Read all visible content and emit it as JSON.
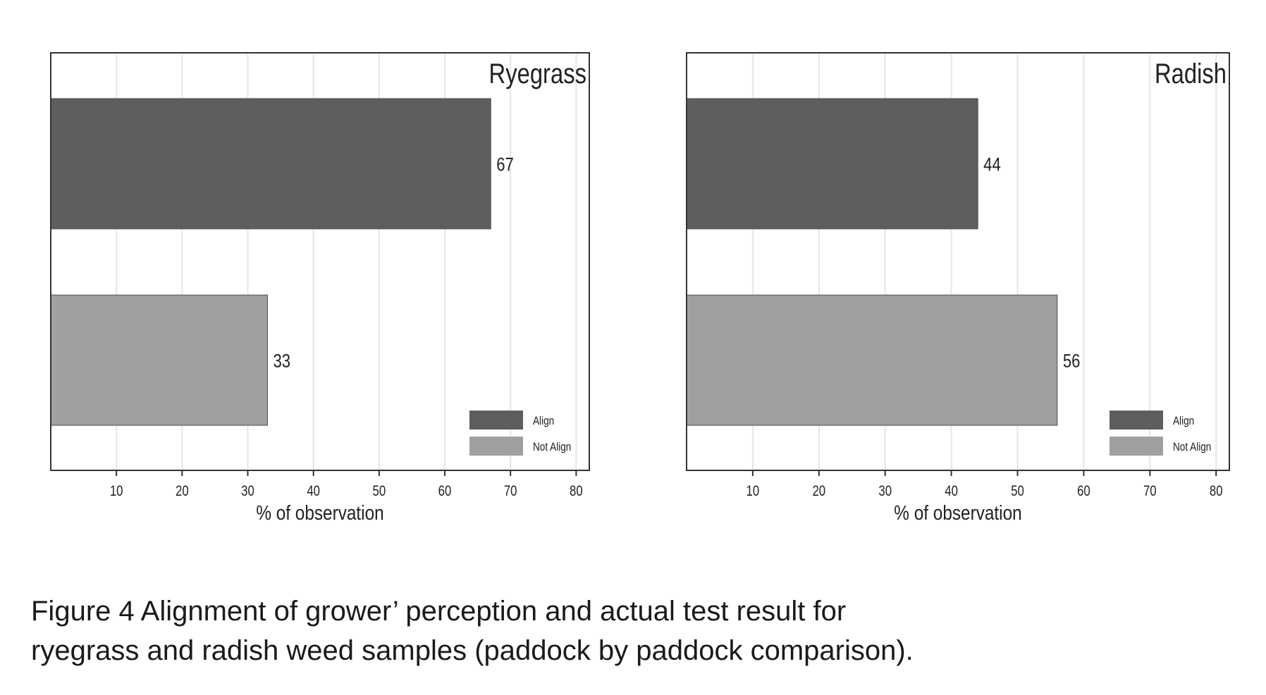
{
  "caption": {
    "line1": "Figure 4 Alignment of grower’ perception and actual test result for",
    "line2": "ryegrass and radish weed samples (paddock by paddock comparison)."
  },
  "colors": {
    "align": "#5e5e5e",
    "not_align": "#a0a0a0",
    "frame": "#333333",
    "grid": "#e6e6e6",
    "text": "#222222"
  },
  "chart_data": [
    {
      "type": "bar",
      "orientation": "horizontal",
      "title": "Ryegrass",
      "categories": [
        "Align",
        "Not Align"
      ],
      "values": [
        67,
        33
      ],
      "data_labels": [
        "67",
        "33"
      ],
      "xlabel": "% of observation",
      "ylabel": "",
      "xlim": [
        0,
        82
      ],
      "xticks": [
        10,
        20,
        30,
        40,
        50,
        60,
        70,
        80
      ],
      "grid": "vertical",
      "legend": {
        "position": "bottom-right",
        "entries": [
          "Align",
          "Not Align"
        ]
      }
    },
    {
      "type": "bar",
      "orientation": "horizontal",
      "title": "Radish",
      "categories": [
        "Align",
        "Not Align"
      ],
      "values": [
        44,
        56
      ],
      "data_labels": [
        "44",
        "56"
      ],
      "xlabel": "% of observation",
      "ylabel": "",
      "xlim": [
        0,
        82
      ],
      "xticks": [
        10,
        20,
        30,
        40,
        50,
        60,
        70,
        80
      ],
      "grid": "vertical",
      "legend": {
        "position": "bottom-right",
        "entries": [
          "Align",
          "Not Align"
        ]
      }
    }
  ]
}
